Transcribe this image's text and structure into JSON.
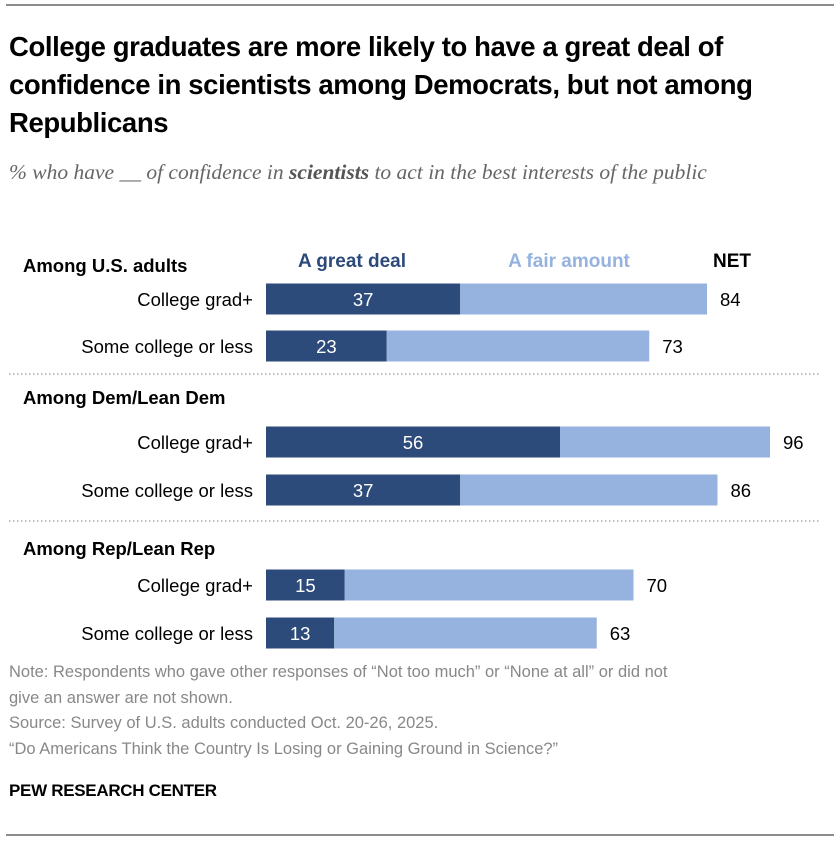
{
  "header": {
    "title": "College graduates are more likely to have a great deal of confidence in scientists among Democrats, but not among Republicans",
    "subtitle_pre": "% who have __ of confidence in ",
    "subtitle_bold": "scientists",
    "subtitle_post": " to act in the best interests of the public"
  },
  "colors": {
    "great_deal": "#2c4a7a",
    "fair_amount": "#96b3df",
    "fair_amount_label": "#96b3df",
    "text": "#000000",
    "separator": "#aaaaaa"
  },
  "chart_data": {
    "type": "bar",
    "orientation": "horizontal",
    "stacked": true,
    "title": "College graduates are more likely to have a great deal of confidence in scientists among Democrats, but not among Republicans",
    "subtitle": "% who have __ of confidence in scientists to act in the best interests of the public",
    "legend": [
      {
        "name": "A great deal",
        "color": "#2c4a7a"
      },
      {
        "name": "A fair amount",
        "color": "#96b3df"
      },
      {
        "name": "NET",
        "color": "#000000"
      }
    ],
    "legend_placement": "top",
    "xlim": [
      0,
      100
    ],
    "grid": false,
    "groups": [
      {
        "label": "Among U.S. adults",
        "rows": [
          {
            "category": "College grad+",
            "great_deal": 37,
            "fair_amount": 47,
            "net": 84
          },
          {
            "category": "Some college or less",
            "great_deal": 23,
            "fair_amount": 50,
            "net": 73
          }
        ]
      },
      {
        "label": "Among Dem/Lean Dem",
        "rows": [
          {
            "category": "College grad+",
            "great_deal": 56,
            "fair_amount": 40,
            "net": 96
          },
          {
            "category": "Some college or less",
            "great_deal": 37,
            "fair_amount": 49,
            "net": 86
          }
        ]
      },
      {
        "label": "Among Rep/Lean Rep",
        "rows": [
          {
            "category": "College grad+",
            "great_deal": 15,
            "fair_amount": 55,
            "net": 70
          },
          {
            "category": "Some college or less",
            "great_deal": 13,
            "fair_amount": 50,
            "net": 63
          }
        ]
      }
    ]
  },
  "footer": {
    "note_line1": "Note: Respondents who gave other responses of “Not too much” or “None at all” or did not",
    "note_line2": "give an answer are not shown.",
    "source": "Source: Survey of U.S. adults conducted Oct. 20-26, 2025.",
    "report": "“Do Americans Think the Country Is Losing or Gaining Ground in Science?”",
    "brand": "PEW RESEARCH CENTER"
  }
}
